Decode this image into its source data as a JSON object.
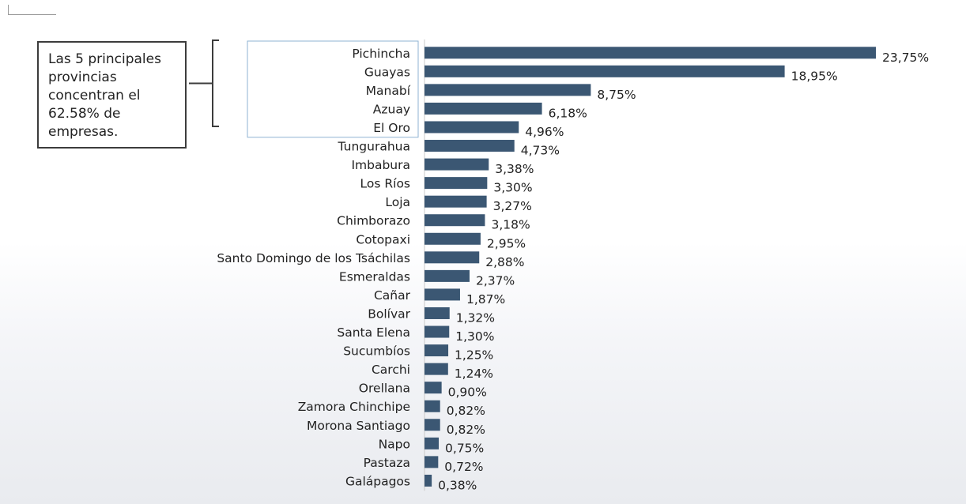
{
  "callout_text": "Las 5 principales provincias concentran el 62.58% de empresas.",
  "colors": {
    "bar": "#3b5773",
    "highlight_box": "#8fb3d3",
    "axis": "#c8c8c8"
  },
  "chart_data": {
    "type": "bar",
    "orientation": "horizontal",
    "title": "",
    "xlabel": "",
    "ylabel": "",
    "xlim": [
      0,
      23.75
    ],
    "grid": false,
    "legend": "none",
    "highlighted_categories": [
      "Pichincha",
      "Guayas",
      "Manabí",
      "Azuay",
      "El Oro"
    ],
    "categories": [
      "Pichincha",
      "Guayas",
      "Manabí",
      "Azuay",
      "El Oro",
      "Tungurahua",
      "Imbabura",
      "Los Ríos",
      "Loja",
      "Chimborazo",
      "Cotopaxi",
      "Santo Domingo de los Tsáchilas",
      "Esmeraldas",
      "Cañar",
      "Bolívar",
      "Santa Elena",
      "Sucumbíos",
      "Carchi",
      "Orellana",
      "Zamora Chinchipe",
      "Morona Santiago",
      "Napo",
      "Pastaza",
      "Galápagos"
    ],
    "values": [
      23.75,
      18.95,
      8.75,
      6.18,
      4.96,
      4.73,
      3.38,
      3.3,
      3.27,
      3.18,
      2.95,
      2.88,
      2.37,
      1.87,
      1.32,
      1.3,
      1.25,
      1.24,
      0.9,
      0.82,
      0.82,
      0.75,
      0.72,
      0.38
    ],
    "labels": [
      "23,75%",
      "18,95%",
      "8,75%",
      "6,18%",
      "4,96%",
      "4,73%",
      "3,38%",
      "3,30%",
      "3,27%",
      "3,18%",
      "2,95%",
      "2,88%",
      "2,37%",
      "1,87%",
      "1,32%",
      "1,30%",
      "1,25%",
      "1,24%",
      "0,90%",
      "0,82%",
      "0,82%",
      "0,75%",
      "0,72%",
      "0,38%"
    ]
  }
}
